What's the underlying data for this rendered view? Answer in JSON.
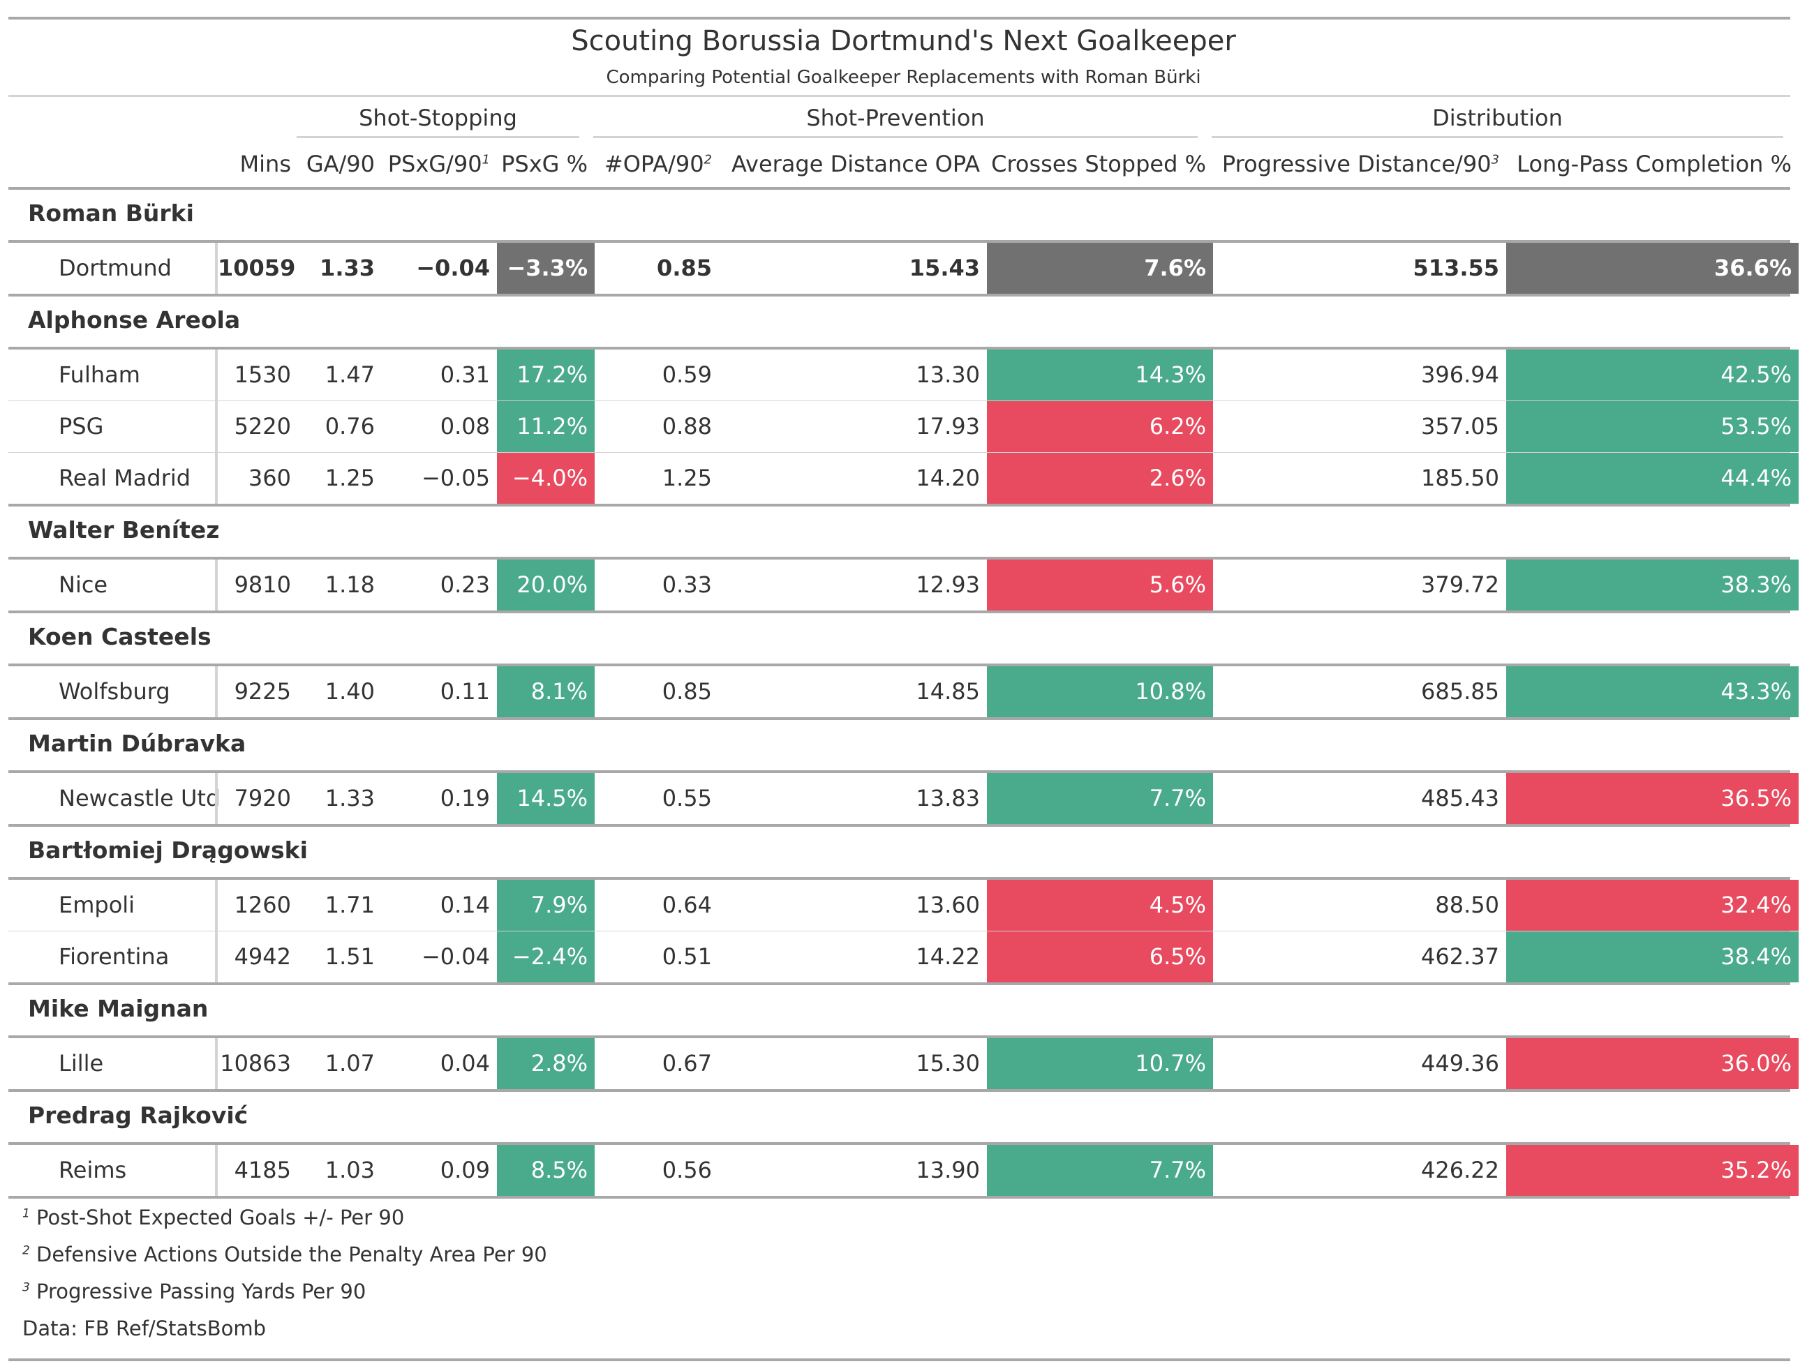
{
  "title": "Scouting Borussia Dortmund's Next Goalkeeper",
  "subtitle": "Comparing Potential Goalkeeper Replacements with Roman Bürki",
  "spanners": [
    "Shot-Stopping",
    "Shot-Prevention",
    "Distribution"
  ],
  "columns": [
    {
      "label": "Mins",
      "sup": ""
    },
    {
      "label": "GA/90",
      "sup": ""
    },
    {
      "label": "PSxG/90",
      "sup": "1"
    },
    {
      "label": "PSxG %",
      "sup": ""
    },
    {
      "label": "#OPA/90",
      "sup": "2"
    },
    {
      "label": "Average Distance OPA",
      "sup": ""
    },
    {
      "label": "Crosses Stopped %",
      "sup": ""
    },
    {
      "label": "Progressive Distance/90",
      "sup": "3"
    },
    {
      "label": "Long-Pass Completion %",
      "sup": ""
    }
  ],
  "colors": {
    "gray": "#717171",
    "green": "#4aaa8c",
    "red": "#e84a5f"
  },
  "groups": [
    {
      "player": "Roman Bürki",
      "rows": [
        {
          "team": "Dortmund",
          "mins": "10059",
          "ga90": "1.33",
          "psxg90": "−0.04",
          "psxg_pct": "−3.3%",
          "opa90": "0.85",
          "avg_dist_opa": "15.43",
          "crosses_pct": "7.6%",
          "prog_dist": "513.55",
          "long_pass_pct": "36.6%",
          "c_psxg": "gray",
          "c_cross": "gray",
          "c_long": "gray"
        }
      ]
    },
    {
      "player": "Alphonse Areola",
      "rows": [
        {
          "team": "Fulham",
          "mins": "1530",
          "ga90": "1.47",
          "psxg90": "0.31",
          "psxg_pct": "17.2%",
          "opa90": "0.59",
          "avg_dist_opa": "13.30",
          "crosses_pct": "14.3%",
          "prog_dist": "396.94",
          "long_pass_pct": "42.5%",
          "c_psxg": "green",
          "c_cross": "green",
          "c_long": "green"
        },
        {
          "team": "PSG",
          "mins": "5220",
          "ga90": "0.76",
          "psxg90": "0.08",
          "psxg_pct": "11.2%",
          "opa90": "0.88",
          "avg_dist_opa": "17.93",
          "crosses_pct": "6.2%",
          "prog_dist": "357.05",
          "long_pass_pct": "53.5%",
          "c_psxg": "green",
          "c_cross": "red",
          "c_long": "green"
        },
        {
          "team": "Real Madrid",
          "mins": "360",
          "ga90": "1.25",
          "psxg90": "−0.05",
          "psxg_pct": "−4.0%",
          "opa90": "1.25",
          "avg_dist_opa": "14.20",
          "crosses_pct": "2.6%",
          "prog_dist": "185.50",
          "long_pass_pct": "44.4%",
          "c_psxg": "red",
          "c_cross": "red",
          "c_long": "green"
        }
      ]
    },
    {
      "player": "Walter Benítez",
      "rows": [
        {
          "team": "Nice",
          "mins": "9810",
          "ga90": "1.18",
          "psxg90": "0.23",
          "psxg_pct": "20.0%",
          "opa90": "0.33",
          "avg_dist_opa": "12.93",
          "crosses_pct": "5.6%",
          "prog_dist": "379.72",
          "long_pass_pct": "38.3%",
          "c_psxg": "green",
          "c_cross": "red",
          "c_long": "green"
        }
      ]
    },
    {
      "player": "Koen Casteels",
      "rows": [
        {
          "team": "Wolfsburg",
          "mins": "9225",
          "ga90": "1.40",
          "psxg90": "0.11",
          "psxg_pct": "8.1%",
          "opa90": "0.85",
          "avg_dist_opa": "14.85",
          "crosses_pct": "10.8%",
          "prog_dist": "685.85",
          "long_pass_pct": "43.3%",
          "c_psxg": "green",
          "c_cross": "green",
          "c_long": "green"
        }
      ]
    },
    {
      "player": "Martin Dúbravka",
      "rows": [
        {
          "team": "Newcastle Utd",
          "mins": "7920",
          "ga90": "1.33",
          "psxg90": "0.19",
          "psxg_pct": "14.5%",
          "opa90": "0.55",
          "avg_dist_opa": "13.83",
          "crosses_pct": "7.7%",
          "prog_dist": "485.43",
          "long_pass_pct": "36.5%",
          "c_psxg": "green",
          "c_cross": "green",
          "c_long": "red"
        }
      ]
    },
    {
      "player": "Bartłomiej Drągowski",
      "rows": [
        {
          "team": "Empoli",
          "mins": "1260",
          "ga90": "1.71",
          "psxg90": "0.14",
          "psxg_pct": "7.9%",
          "opa90": "0.64",
          "avg_dist_opa": "13.60",
          "crosses_pct": "4.5%",
          "prog_dist": "88.50",
          "long_pass_pct": "32.4%",
          "c_psxg": "green",
          "c_cross": "red",
          "c_long": "red"
        },
        {
          "team": "Fiorentina",
          "mins": "4942",
          "ga90": "1.51",
          "psxg90": "−0.04",
          "psxg_pct": "−2.4%",
          "opa90": "0.51",
          "avg_dist_opa": "14.22",
          "crosses_pct": "6.5%",
          "prog_dist": "462.37",
          "long_pass_pct": "38.4%",
          "c_psxg": "green",
          "c_cross": "red",
          "c_long": "green"
        }
      ]
    },
    {
      "player": "Mike Maignan",
      "rows": [
        {
          "team": "Lille",
          "mins": "10863",
          "ga90": "1.07",
          "psxg90": "0.04",
          "psxg_pct": "2.8%",
          "opa90": "0.67",
          "avg_dist_opa": "15.30",
          "crosses_pct": "10.7%",
          "prog_dist": "449.36",
          "long_pass_pct": "36.0%",
          "c_psxg": "green",
          "c_cross": "green",
          "c_long": "red"
        }
      ]
    },
    {
      "player": "Predrag Rajković",
      "rows": [
        {
          "team": "Reims",
          "mins": "4185",
          "ga90": "1.03",
          "psxg90": "0.09",
          "psxg_pct": "8.5%",
          "opa90": "0.56",
          "avg_dist_opa": "13.90",
          "crosses_pct": "7.7%",
          "prog_dist": "426.22",
          "long_pass_pct": "35.2%",
          "c_psxg": "green",
          "c_cross": "green",
          "c_long": "red"
        }
      ]
    }
  ],
  "footnotes": [
    {
      "mark": "1",
      "text": "Post-Shot Expected Goals +/- Per 90"
    },
    {
      "mark": "2",
      "text": "Defensive Actions Outside the Penalty Area Per 90"
    },
    {
      "mark": "3",
      "text": "Progressive Passing Yards Per 90"
    }
  ],
  "source": "Data: FB Ref/StatsBomb"
}
